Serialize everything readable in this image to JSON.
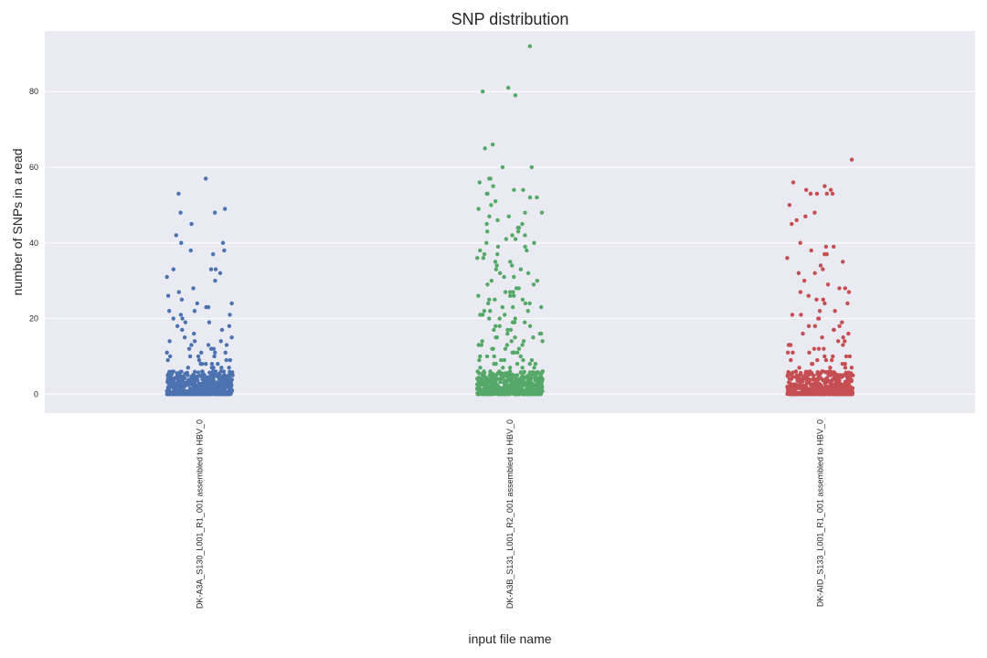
{
  "chart_data": {
    "type": "scatter",
    "subtype": "strip",
    "title": "SNP distribution",
    "xlabel": "input file name",
    "ylabel": "number of SNPs in a read",
    "ylim": [
      -5,
      96
    ],
    "yticks": [
      0,
      20,
      40,
      60,
      80
    ],
    "grid": true,
    "legend": "none",
    "background": "#EAEAF2",
    "categories": [
      "DK-A3A_S130_L001_R1_001 assembled to HBV_0",
      "DK-A3B_S131_L001_R2_001 assembled to HBV_0",
      "DK-AID_S133_L001_R1_001 assembled to HBV_0"
    ],
    "series": [
      {
        "category": "DK-A3A_S130_L001_R1_001 assembled to HBV_0",
        "color": "#4C72B0",
        "values": [
          57,
          53,
          49,
          48,
          48,
          45,
          42,
          40,
          40,
          38,
          38,
          37,
          33,
          33,
          33,
          32,
          31,
          30,
          28,
          27,
          26,
          25,
          24,
          24,
          23,
          23,
          22,
          22,
          21,
          21,
          20,
          20,
          19,
          19,
          18,
          18,
          17,
          17,
          16,
          15,
          15,
          14,
          14,
          14,
          13,
          13,
          13,
          12,
          12,
          12,
          11,
          11,
          11,
          11,
          10,
          10,
          10,
          10,
          9,
          9,
          9,
          9,
          8,
          8,
          8,
          8,
          8,
          7,
          7,
          7,
          7,
          7,
          6,
          6,
          6,
          6,
          6,
          6,
          5,
          5,
          5,
          5,
          5,
          5,
          4,
          4,
          4,
          4,
          4,
          4,
          4,
          3,
          3,
          3,
          3,
          3,
          3,
          3,
          2,
          2,
          2,
          2,
          2,
          2,
          2,
          2,
          1,
          1,
          1,
          1,
          1,
          1,
          1,
          1,
          0,
          0,
          0,
          0,
          0,
          0,
          0,
          0,
          0,
          0
        ]
      },
      {
        "category": "DK-A3B_S131_L001_R2_001 assembled to HBV_0",
        "color": "#55A868",
        "values": [
          92,
          81,
          80,
          79,
          66,
          65,
          60,
          60,
          57,
          57,
          56,
          55,
          54,
          54,
          53,
          53,
          52,
          52,
          51,
          50,
          49,
          48,
          48,
          47,
          47,
          46,
          45,
          45,
          44,
          44,
          43,
          43,
          42,
          42,
          41,
          41,
          40,
          40,
          39,
          39,
          38,
          38,
          37,
          37,
          36,
          36,
          35,
          35,
          34,
          34,
          33,
          33,
          32,
          32,
          31,
          31,
          30,
          30,
          29,
          29,
          28,
          28,
          27,
          27,
          27,
          26,
          26,
          26,
          25,
          25,
          25,
          24,
          24,
          24,
          23,
          23,
          23,
          22,
          22,
          22,
          21,
          21,
          21,
          20,
          20,
          20,
          19,
          19,
          19,
          18,
          18,
          18,
          17,
          17,
          17,
          16,
          16,
          16,
          15,
          15,
          15,
          15,
          14,
          14,
          14,
          14,
          13,
          13,
          13,
          13,
          12,
          12,
          12,
          12,
          11,
          11,
          11,
          11,
          10,
          10,
          10,
          10,
          9,
          9,
          9,
          9,
          9,
          8,
          8,
          8,
          8,
          8,
          7,
          7,
          7,
          7,
          7,
          6,
          6,
          6,
          6,
          6,
          6,
          5,
          5,
          5,
          5,
          5,
          5,
          4,
          4,
          4,
          4,
          4,
          4,
          3,
          3,
          3,
          3,
          3,
          3,
          2,
          2,
          2,
          2,
          2,
          2,
          1,
          1,
          1,
          1,
          1,
          1,
          0,
          0,
          0,
          0,
          0,
          0
        ]
      },
      {
        "category": "DK-AID_S133_L001_R1_001 assembled to HBV_0",
        "color": "#C44E52",
        "values": [
          62,
          56,
          55,
          54,
          54,
          53,
          53,
          53,
          53,
          50,
          48,
          47,
          46,
          45,
          40,
          39,
          39,
          38,
          37,
          37,
          36,
          35,
          34,
          33,
          32,
          32,
          30,
          29,
          28,
          28,
          27,
          27,
          26,
          25,
          25,
          24,
          24,
          22,
          22,
          21,
          21,
          20,
          20,
          19,
          18,
          18,
          18,
          17,
          17,
          16,
          16,
          15,
          15,
          14,
          14,
          13,
          13,
          13,
          12,
          12,
          12,
          11,
          11,
          11,
          10,
          10,
          10,
          10,
          9,
          9,
          9,
          9,
          8,
          8,
          8,
          8,
          7,
          7,
          7,
          7,
          6,
          6,
          6,
          6,
          6,
          5,
          5,
          5,
          5,
          5,
          4,
          4,
          4,
          4,
          4,
          3,
          3,
          3,
          3,
          3,
          2,
          2,
          2,
          2,
          2,
          1,
          1,
          1,
          1,
          1,
          0,
          0,
          0,
          0,
          0,
          0
        ]
      }
    ]
  }
}
